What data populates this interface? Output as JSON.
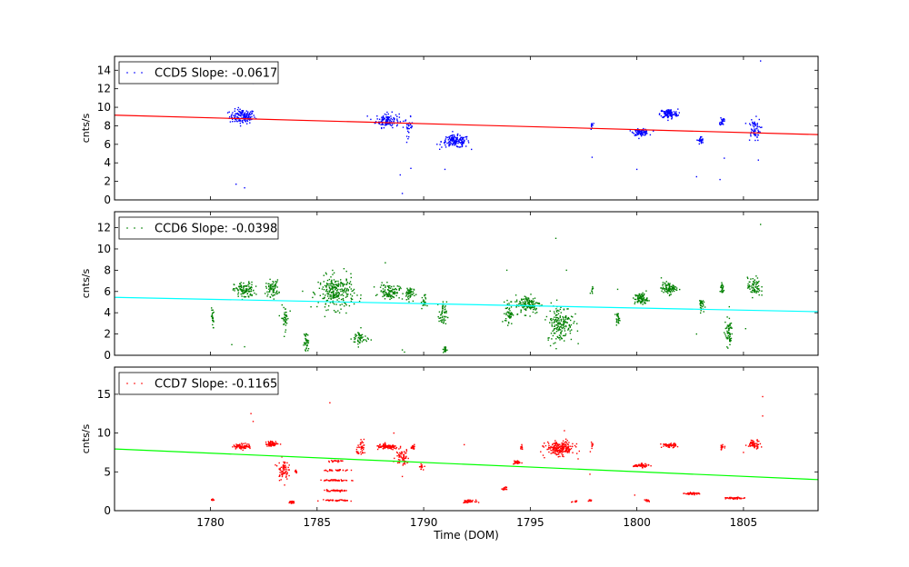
{
  "chart_data": {
    "type": "scatter",
    "xlabel": "Time (DOM)",
    "xlim": [
      1775.5,
      1808.5
    ],
    "xticks": [
      1780,
      1785,
      1790,
      1795,
      1800,
      1805
    ],
    "xtick_labels": [
      "1780",
      "1785",
      "1790",
      "1795",
      "1800",
      "1805"
    ],
    "panels": [
      {
        "name": "CCD5",
        "legend": "CCD5 Slope: -0.0617",
        "ylabel": "cnts/s",
        "ylim": [
          0,
          15.5
        ],
        "yticks": [
          0,
          2,
          4,
          6,
          8,
          10,
          12,
          14
        ],
        "ytick_labels": [
          "0",
          "2",
          "4",
          "6",
          "8",
          "10",
          "12",
          "14"
        ],
        "point_color": "#0000ff",
        "fit_color": "#ff0000",
        "fit_line": {
          "x": [
            1775.5,
            1808.5
          ],
          "y": [
            9.15,
            7.05
          ]
        },
        "clusters": [
          {
            "x": 1781.5,
            "y": 9.0,
            "dx": 0.5,
            "dy": 0.7,
            "n": 140
          },
          {
            "x": 1788.3,
            "y": 8.6,
            "dx": 0.45,
            "dy": 0.7,
            "n": 120
          },
          {
            "x": 1789.3,
            "y": 7.9,
            "dx": 0.15,
            "dy": 0.9,
            "n": 30
          },
          {
            "x": 1791.5,
            "y": 6.3,
            "dx": 0.55,
            "dy": 0.6,
            "n": 160
          },
          {
            "x": 1797.9,
            "y": 8.0,
            "dx": 0.05,
            "dy": 0.7,
            "n": 10
          },
          {
            "x": 1800.2,
            "y": 7.3,
            "dx": 0.3,
            "dy": 0.3,
            "n": 90
          },
          {
            "x": 1801.5,
            "y": 9.3,
            "dx": 0.35,
            "dy": 0.45,
            "n": 110
          },
          {
            "x": 1803.0,
            "y": 6.4,
            "dx": 0.1,
            "dy": 0.4,
            "n": 30
          },
          {
            "x": 1804.0,
            "y": 8.5,
            "dx": 0.08,
            "dy": 0.45,
            "n": 25
          },
          {
            "x": 1805.5,
            "y": 7.6,
            "dx": 0.25,
            "dy": 1.1,
            "n": 60
          }
        ],
        "outliers": [
          [
            1781.2,
            1.7
          ],
          [
            1781.6,
            1.3
          ],
          [
            1782.0,
            12.6
          ],
          [
            1789.0,
            0.7
          ],
          [
            1788.9,
            2.7
          ],
          [
            1789.4,
            3.4
          ],
          [
            1791.0,
            3.3
          ],
          [
            1800.0,
            3.3
          ],
          [
            1802.8,
            2.5
          ],
          [
            1803.9,
            2.2
          ],
          [
            1804.1,
            4.5
          ],
          [
            1805.7,
            4.3
          ],
          [
            1805.8,
            15.0
          ],
          [
            1797.9,
            4.6
          ]
        ]
      },
      {
        "name": "CCD6",
        "legend": "CCD6 Slope: -0.0398",
        "ylabel": "cnts/s",
        "ylim": [
          0,
          13.5
        ],
        "yticks": [
          0,
          2,
          4,
          6,
          8,
          10,
          12
        ],
        "ytick_labels": [
          "0",
          "2",
          "4",
          "6",
          "8",
          "10",
          "12"
        ],
        "point_color": "#008000",
        "fit_color": "#00ffff",
        "fit_line": {
          "x": [
            1775.5,
            1808.5
          ],
          "y": [
            5.45,
            4.1
          ]
        },
        "clusters": [
          {
            "x": 1780.1,
            "y": 3.5,
            "dx": 0.05,
            "dy": 0.9,
            "n": 20
          },
          {
            "x": 1781.6,
            "y": 6.1,
            "dx": 0.4,
            "dy": 0.7,
            "n": 110
          },
          {
            "x": 1782.9,
            "y": 6.3,
            "dx": 0.25,
            "dy": 0.7,
            "n": 70
          },
          {
            "x": 1783.5,
            "y": 3.5,
            "dx": 0.15,
            "dy": 1.0,
            "n": 40
          },
          {
            "x": 1784.5,
            "y": 1.2,
            "dx": 0.1,
            "dy": 0.9,
            "n": 40
          },
          {
            "x": 1785.9,
            "y": 5.9,
            "dx": 0.7,
            "dy": 1.4,
            "n": 260
          },
          {
            "x": 1787.0,
            "y": 1.6,
            "dx": 0.3,
            "dy": 0.7,
            "n": 50
          },
          {
            "x": 1788.4,
            "y": 6.0,
            "dx": 0.4,
            "dy": 0.6,
            "n": 100
          },
          {
            "x": 1789.3,
            "y": 5.8,
            "dx": 0.2,
            "dy": 0.6,
            "n": 50
          },
          {
            "x": 1790.0,
            "y": 5.0,
            "dx": 0.1,
            "dy": 0.6,
            "n": 20
          },
          {
            "x": 1790.9,
            "y": 3.8,
            "dx": 0.15,
            "dy": 1.1,
            "n": 50
          },
          {
            "x": 1791.0,
            "y": 0.5,
            "dx": 0.08,
            "dy": 0.3,
            "n": 20
          },
          {
            "x": 1794.0,
            "y": 4.0,
            "dx": 0.15,
            "dy": 1.0,
            "n": 50
          },
          {
            "x": 1794.9,
            "y": 4.8,
            "dx": 0.5,
            "dy": 0.8,
            "n": 130
          },
          {
            "x": 1796.4,
            "y": 3.0,
            "dx": 0.5,
            "dy": 1.6,
            "n": 180
          },
          {
            "x": 1797.9,
            "y": 6.2,
            "dx": 0.05,
            "dy": 0.5,
            "n": 10
          },
          {
            "x": 1799.1,
            "y": 3.5,
            "dx": 0.08,
            "dy": 0.4,
            "n": 25
          },
          {
            "x": 1800.2,
            "y": 5.3,
            "dx": 0.25,
            "dy": 0.5,
            "n": 90
          },
          {
            "x": 1801.5,
            "y": 6.3,
            "dx": 0.3,
            "dy": 0.5,
            "n": 90
          },
          {
            "x": 1803.0,
            "y": 4.8,
            "dx": 0.1,
            "dy": 0.5,
            "n": 30
          },
          {
            "x": 1804.0,
            "y": 6.3,
            "dx": 0.08,
            "dy": 0.6,
            "n": 25
          },
          {
            "x": 1804.3,
            "y": 2.2,
            "dx": 0.15,
            "dy": 1.2,
            "n": 60
          },
          {
            "x": 1805.5,
            "y": 6.4,
            "dx": 0.25,
            "dy": 0.8,
            "n": 70
          }
        ],
        "outliers": [
          [
            1781.0,
            1.0
          ],
          [
            1781.6,
            0.8
          ],
          [
            1782.0,
            11.0
          ],
          [
            1788.2,
            8.7
          ],
          [
            1789.0,
            0.5
          ],
          [
            1789.1,
            0.3
          ],
          [
            1793.9,
            8.0
          ],
          [
            1796.2,
            11.0
          ],
          [
            1796.7,
            8.0
          ],
          [
            1805.8,
            12.3
          ],
          [
            1805.1,
            2.5
          ],
          [
            1802.8,
            2.0
          ],
          [
            1799.1,
            6.2
          ]
        ]
      },
      {
        "name": "CCD7",
        "legend": "CCD7 Slope: -0.1165",
        "ylabel": "cnts/s",
        "ylim": [
          0,
          18.5
        ],
        "yticks": [
          0,
          5,
          10,
          15
        ],
        "ytick_labels": [
          "0",
          "5",
          "10",
          "15"
        ],
        "point_color": "#ff0000",
        "fit_color": "#00ff00",
        "fit_line": {
          "x": [
            1775.5,
            1808.5
          ],
          "y": [
            7.95,
            4.0
          ]
        },
        "clusters": [
          {
            "x": 1780.1,
            "y": 1.4,
            "dx": 0.05,
            "dy": 0.15,
            "n": 10
          },
          {
            "x": 1781.5,
            "y": 8.3,
            "dx": 0.35,
            "dy": 0.3,
            "n": 80
          },
          {
            "x": 1782.9,
            "y": 8.6,
            "dx": 0.25,
            "dy": 0.3,
            "n": 60
          },
          {
            "x": 1783.4,
            "y": 5.3,
            "dx": 0.2,
            "dy": 1.2,
            "n": 70
          },
          {
            "x": 1783.8,
            "y": 1.1,
            "dx": 0.12,
            "dy": 0.15,
            "n": 25
          },
          {
            "x": 1784.0,
            "y": 5.0,
            "dx": 0.05,
            "dy": 0.4,
            "n": 10
          },
          {
            "x": 1785.9,
            "y": 3.9,
            "dx": 0.5,
            "dy": 0.1,
            "n": 40
          },
          {
            "x": 1785.9,
            "y": 2.6,
            "dx": 0.5,
            "dy": 0.1,
            "n": 40
          },
          {
            "x": 1785.9,
            "y": 1.3,
            "dx": 0.5,
            "dy": 0.1,
            "n": 40
          },
          {
            "x": 1785.9,
            "y": 5.2,
            "dx": 0.5,
            "dy": 0.1,
            "n": 30
          },
          {
            "x": 1785.9,
            "y": 6.4,
            "dx": 0.4,
            "dy": 0.1,
            "n": 20
          },
          {
            "x": 1787.1,
            "y": 8.0,
            "dx": 0.2,
            "dy": 0.8,
            "n": 40
          },
          {
            "x": 1788.3,
            "y": 8.2,
            "dx": 0.45,
            "dy": 0.3,
            "n": 100
          },
          {
            "x": 1789.0,
            "y": 6.9,
            "dx": 0.25,
            "dy": 0.9,
            "n": 60
          },
          {
            "x": 1789.5,
            "y": 8.3,
            "dx": 0.1,
            "dy": 0.3,
            "n": 25
          },
          {
            "x": 1789.9,
            "y": 5.6,
            "dx": 0.08,
            "dy": 0.3,
            "n": 15
          },
          {
            "x": 1792.1,
            "y": 1.2,
            "dx": 0.25,
            "dy": 0.15,
            "n": 40
          },
          {
            "x": 1793.8,
            "y": 2.8,
            "dx": 0.08,
            "dy": 0.2,
            "n": 15
          },
          {
            "x": 1794.4,
            "y": 6.2,
            "dx": 0.15,
            "dy": 0.2,
            "n": 30
          },
          {
            "x": 1794.6,
            "y": 8.2,
            "dx": 0.06,
            "dy": 0.4,
            "n": 10
          },
          {
            "x": 1796.4,
            "y": 8.0,
            "dx": 0.55,
            "dy": 0.8,
            "n": 220
          },
          {
            "x": 1797.1,
            "y": 1.2,
            "dx": 0.1,
            "dy": 0.15,
            "n": 15
          },
          {
            "x": 1797.8,
            "y": 1.3,
            "dx": 0.08,
            "dy": 0.15,
            "n": 12
          },
          {
            "x": 1797.9,
            "y": 8.5,
            "dx": 0.05,
            "dy": 0.3,
            "n": 10
          },
          {
            "x": 1800.2,
            "y": 5.8,
            "dx": 0.3,
            "dy": 0.2,
            "n": 60
          },
          {
            "x": 1800.5,
            "y": 1.3,
            "dx": 0.1,
            "dy": 0.15,
            "n": 12
          },
          {
            "x": 1801.5,
            "y": 8.4,
            "dx": 0.3,
            "dy": 0.25,
            "n": 60
          },
          {
            "x": 1802.6,
            "y": 2.2,
            "dx": 0.3,
            "dy": 0.12,
            "n": 40
          },
          {
            "x": 1804.0,
            "y": 8.2,
            "dx": 0.08,
            "dy": 0.3,
            "n": 15
          },
          {
            "x": 1804.6,
            "y": 1.6,
            "dx": 0.35,
            "dy": 0.1,
            "n": 45
          },
          {
            "x": 1805.5,
            "y": 8.6,
            "dx": 0.25,
            "dy": 0.5,
            "n": 60
          }
        ],
        "outliers": [
          [
            1781.9,
            12.5
          ],
          [
            1782.0,
            11.5
          ],
          [
            1785.6,
            13.9
          ],
          [
            1789.0,
            4.4
          ],
          [
            1788.6,
            10.0
          ],
          [
            1791.9,
            8.5
          ],
          [
            1797.8,
            4.7
          ],
          [
            1799.9,
            2.0
          ],
          [
            1802.9,
            2.2
          ],
          [
            1805.9,
            14.7
          ],
          [
            1805.9,
            12.2
          ],
          [
            1805.0,
            7.5
          ],
          [
            1796.6,
            10.3
          ]
        ]
      }
    ]
  }
}
